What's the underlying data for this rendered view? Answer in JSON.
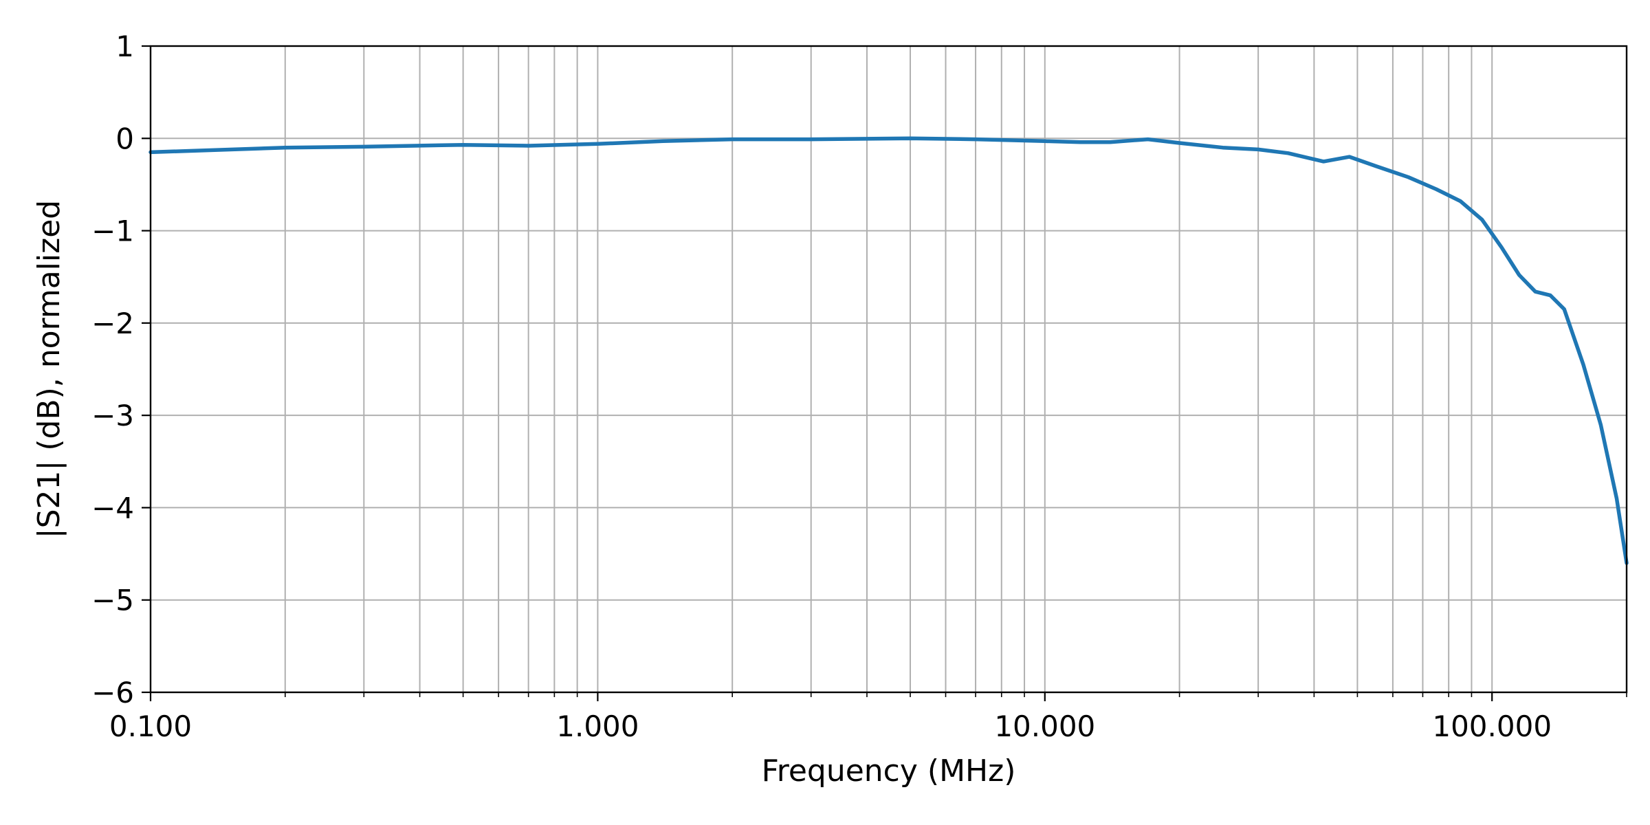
{
  "chart_data": {
    "type": "line",
    "title": "",
    "xlabel": "Frequency (MHz)",
    "ylabel": "|S21| (dB), normalized",
    "x_scale": "log",
    "xlim": [
      0.1,
      200
    ],
    "ylim": [
      -6,
      1
    ],
    "grid": true,
    "legend": "none",
    "x_major_ticks": [
      0.1,
      1,
      10,
      100
    ],
    "x_tick_labels": [
      "0.100",
      "1.000",
      "10.000",
      "100.000"
    ],
    "x_minor_ticks": [
      0.2,
      0.3,
      0.4,
      0.5,
      0.6,
      0.7,
      0.8,
      0.9,
      2,
      3,
      4,
      5,
      6,
      7,
      8,
      9,
      20,
      30,
      40,
      50,
      60,
      70,
      80,
      90,
      200
    ],
    "y_ticks": [
      1,
      0,
      -1,
      -2,
      -3,
      -4,
      -5,
      -6
    ],
    "y_tick_labels": [
      "1",
      "0",
      "−1",
      "−2",
      "−3",
      "−4",
      "−5",
      "−6"
    ],
    "colors": {
      "line": "#1f77b4",
      "grid": "#b0b0b0",
      "axes": "#000000"
    },
    "series": [
      {
        "x": [
          0.1,
          0.2,
          0.3,
          0.5,
          0.7,
          1.0,
          1.4,
          2.0,
          3.0,
          5.0,
          7.0,
          10.0,
          12.0,
          14.0,
          17.0,
          20.0,
          25.0,
          30.0,
          35.0,
          42.0,
          48.0,
          55.0,
          65.0,
          75.0,
          85.0,
          95.0,
          105.0,
          115.0,
          125.0,
          135.0,
          145.0,
          160.0,
          175.0,
          190.0,
          200.0
        ],
        "y": [
          -0.15,
          -0.1,
          -0.09,
          -0.07,
          -0.08,
          -0.06,
          -0.03,
          -0.01,
          -0.01,
          0.0,
          -0.01,
          -0.03,
          -0.04,
          -0.04,
          -0.01,
          -0.05,
          -0.1,
          -0.12,
          -0.16,
          -0.25,
          -0.2,
          -0.3,
          -0.42,
          -0.55,
          -0.68,
          -0.88,
          -1.18,
          -1.48,
          -1.66,
          -1.7,
          -1.85,
          -2.45,
          -3.1,
          -3.9,
          -4.6
        ]
      }
    ]
  }
}
